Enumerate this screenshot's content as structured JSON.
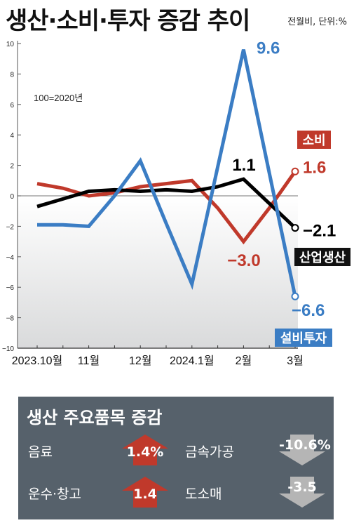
{
  "header": {
    "title": "생산·소비·투자 증감 추이",
    "unit": "전월비, 단위:%"
  },
  "chart_data": {
    "type": "line",
    "base_note": "100=2020년",
    "categories": [
      "2023.10월",
      "",
      "11월",
      "",
      "12월",
      "",
      "2024.1월",
      "",
      "2월",
      "",
      "3월"
    ],
    "yticks": [
      10,
      8,
      6,
      4,
      2,
      0,
      -2,
      -4,
      -6,
      -8,
      -10
    ],
    "ylim": [
      -10,
      10
    ],
    "series": [
      {
        "name": "소비",
        "color": "#c0392b",
        "values": [
          0.8,
          0.5,
          0.0,
          0.2,
          0.6,
          0.8,
          1.0,
          -0.8,
          -3.0,
          -0.8,
          1.6
        ],
        "end_label": "1.6",
        "point_label": "-3.0"
      },
      {
        "name": "산업생산",
        "color": "#000000",
        "values": [
          -0.7,
          -0.2,
          0.3,
          0.4,
          0.3,
          0.4,
          0.3,
          0.6,
          1.1,
          -0.5,
          -2.1
        ],
        "end_label": "-2.1",
        "point_label": "1.1"
      },
      {
        "name": "설비투자",
        "color": "#3b7dc4",
        "values": [
          -1.9,
          -1.9,
          -2.0,
          -0.0,
          2.3,
          -1.8,
          -5.8,
          1.9,
          9.6,
          1.5,
          -6.6
        ],
        "end_label": "-6.6",
        "point_label": "9.6"
      }
    ]
  },
  "summary": {
    "title": "생산 주요품목 증감",
    "items": [
      {
        "label": "음료",
        "value": "1.4%",
        "direction": "up",
        "color": "#c0392b"
      },
      {
        "label": "금속가공",
        "value": "-10.6%",
        "direction": "down",
        "color": "#b5b5b5"
      },
      {
        "label": "운수·창고",
        "value": "1.4",
        "direction": "up",
        "color": "#c0392b"
      },
      {
        "label": "도소매",
        "value": "-3.5",
        "direction": "down",
        "color": "#b5b5b5"
      }
    ]
  }
}
